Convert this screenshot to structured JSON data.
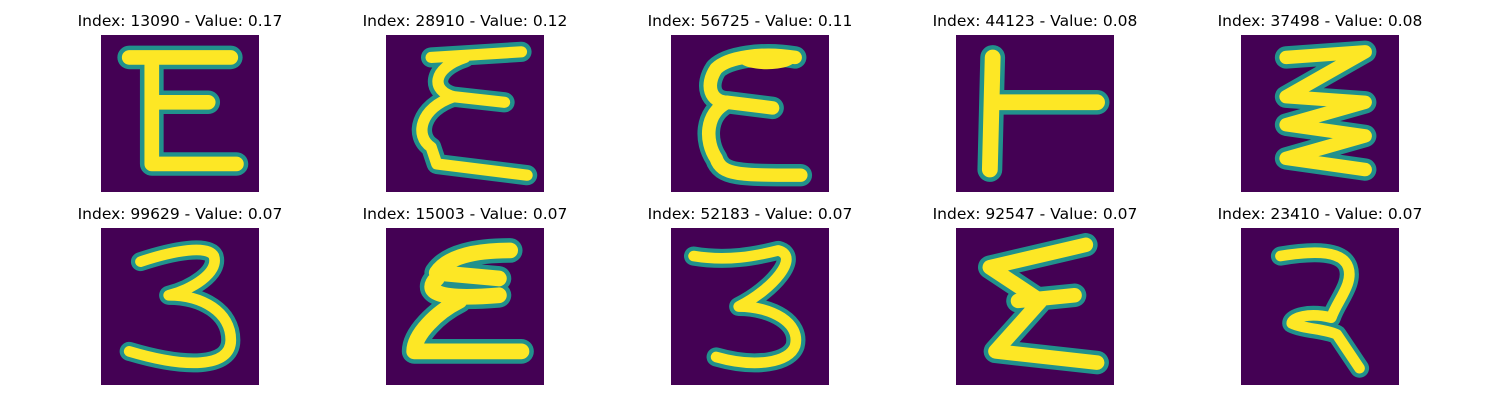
{
  "colors": {
    "background": "#440154",
    "stroke_core": "#fde725",
    "stroke_edge": "#21918c"
  },
  "panels": [
    {
      "title": "Index: 13090 - Value: 0.17",
      "glyph": "E"
    },
    {
      "title": "Index: 28910 - Value: 0.12",
      "glyph": "script-E"
    },
    {
      "title": "Index: 56725 - Value: 0.11",
      "glyph": "rounded-E"
    },
    {
      "title": "Index: 44123 - Value: 0.08",
      "glyph": "T-rotated"
    },
    {
      "title": "Index: 37498 - Value: 0.08",
      "glyph": "zigzag"
    },
    {
      "title": "Index: 99629 - Value: 0.07",
      "glyph": "3"
    },
    {
      "title": "Index: 15003 - Value: 0.07",
      "glyph": "stacked-E"
    },
    {
      "title": "Index: 52183 - Value: 0.07",
      "glyph": "3"
    },
    {
      "title": "Index: 92547 - Value: 0.07",
      "glyph": "sigma"
    },
    {
      "title": "Index: 23410 - Value: 0.07",
      "glyph": "2-like"
    }
  ]
}
